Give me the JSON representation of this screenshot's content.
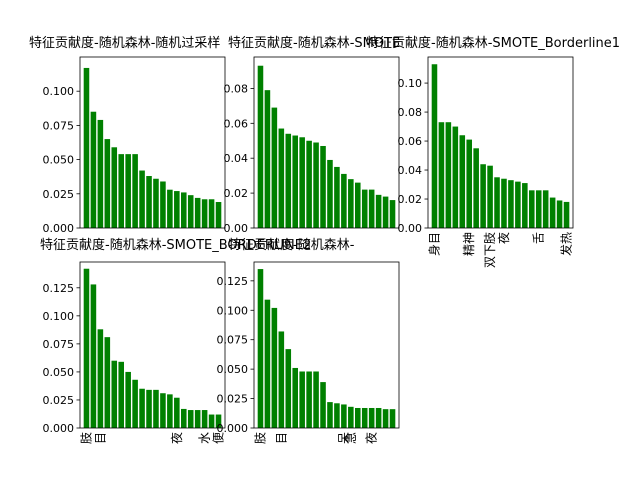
{
  "bar_color": "#008000",
  "chart_data": [
    {
      "type": "bar",
      "title": "特征贡献度-随机森林-随机过采样",
      "categories": [
        "",
        "",
        "",
        "",
        "",
        "",
        "",
        "",
        "",
        "",
        "",
        "",
        "",
        "",
        "",
        "",
        "",
        "",
        "",
        ""
      ],
      "values": [
        0.117,
        0.085,
        0.079,
        0.065,
        0.059,
        0.054,
        0.054,
        0.054,
        0.042,
        0.038,
        0.036,
        0.034,
        0.028,
        0.027,
        0.026,
        0.024,
        0.022,
        0.021,
        0.021,
        0.019
      ],
      "ylim": [
        0,
        0.125
      ],
      "yticks": [
        "0.000",
        "0.025",
        "0.050",
        "0.075",
        "0.100"
      ],
      "ytick_values": [
        0,
        0.025,
        0.05,
        0.075,
        0.1
      ]
    },
    {
      "type": "bar",
      "title": "特征贡献度-随机森林-SMOTE",
      "categories": [
        "",
        "",
        "",
        "",
        "",
        "",
        "",
        "",
        "",
        "",
        "",
        "",
        "",
        "",
        "",
        "",
        "",
        "",
        "",
        ""
      ],
      "values": [
        0.093,
        0.079,
        0.069,
        0.057,
        0.054,
        0.053,
        0.052,
        0.05,
        0.049,
        0.047,
        0.039,
        0.035,
        0.031,
        0.028,
        0.026,
        0.022,
        0.022,
        0.019,
        0.018,
        0.016
      ],
      "ylim": [
        0,
        0.098
      ],
      "yticks": [
        "0.00",
        "0.02",
        "0.04",
        "0.06",
        "0.08"
      ],
      "ytick_values": [
        0,
        0.02,
        0.04,
        0.06,
        0.08
      ]
    },
    {
      "type": "bar",
      "title": "特征贡献度-随机森林-SMOTE_Borderline1",
      "categories": [
        "身目",
        "",
        "",
        "",
        "",
        "精神",
        "",
        "",
        "双下肢",
        "",
        "夜",
        "",
        "",
        "",
        "",
        "舌",
        "",
        "",
        "",
        "发热"
      ],
      "values": [
        0.113,
        0.073,
        0.073,
        0.07,
        0.064,
        0.061,
        0.055,
        0.044,
        0.043,
        0.035,
        0.034,
        0.033,
        0.032,
        0.031,
        0.026,
        0.026,
        0.026,
        0.021,
        0.019,
        0.018
      ],
      "ylim": [
        0,
        0.118
      ],
      "yticks": [
        "0.00",
        "0.02",
        "0.04",
        "0.06",
        "0.08",
        "0.10"
      ],
      "ytick_values": [
        0,
        0.02,
        0.04,
        0.06,
        0.08,
        0.1
      ]
    },
    {
      "type": "bar",
      "title": "特征贡献度-随机森林-SMOTE_BORDERLINE2",
      "categories": [
        "肢",
        "",
        "目",
        "",
        "",
        "",
        "",
        "",
        "",
        "",
        "",
        "",
        "",
        "夜",
        "",
        "",
        "",
        "水",
        "",
        "便"
      ],
      "values": [
        0.142,
        0.128,
        0.088,
        0.081,
        0.06,
        0.059,
        0.05,
        0.043,
        0.035,
        0.034,
        0.034,
        0.031,
        0.03,
        0.027,
        0.017,
        0.016,
        0.016,
        0.016,
        0.012,
        0.012
      ],
      "ylim": [
        0,
        0.148
      ],
      "yticks": [
        "0.000",
        "0.025",
        "0.050",
        "0.075",
        "0.100",
        "0.125"
      ],
      "ytick_values": [
        0,
        0.025,
        0.05,
        0.075,
        0.1,
        0.125
      ]
    },
    {
      "type": "bar",
      "title": "特征贡献度-随机森林-",
      "categories": [
        "肢",
        "",
        "",
        "目",
        "",
        "",
        "",
        "",
        "",
        "",
        "",
        "",
        "呆",
        "急",
        "",
        "",
        "夜",
        "",
        "",
        ""
      ],
      "values": [
        0.135,
        0.109,
        0.102,
        0.082,
        0.067,
        0.051,
        0.048,
        0.048,
        0.048,
        0.039,
        0.022,
        0.021,
        0.02,
        0.018,
        0.017,
        0.017,
        0.017,
        0.017,
        0.016,
        0.016
      ],
      "ylim": [
        0,
        0.141
      ],
      "yticks": [
        "0.000",
        "0.025",
        "0.050",
        "0.075",
        "0.100",
        "0.125"
      ],
      "ytick_values": [
        0,
        0.025,
        0.05,
        0.075,
        0.1,
        0.125
      ]
    }
  ]
}
